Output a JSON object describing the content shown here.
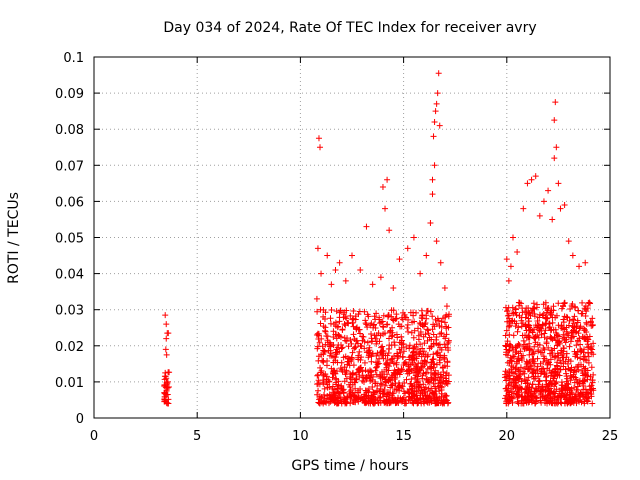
{
  "chart_data": {
    "type": "scatter",
    "title": "Day 034 of 2024, Rate Of TEC Index for receiver avry",
    "xlabel": "GPS time / hours",
    "ylabel": "ROTI / TECUs",
    "xlim": [
      0,
      25
    ],
    "ylim": [
      0,
      0.1
    ],
    "xticks": [
      0,
      5,
      10,
      15,
      20,
      25
    ],
    "xtick_labels": [
      "0",
      "5",
      "10",
      "15",
      "20",
      "25"
    ],
    "yticks": [
      0,
      0.01,
      0.02,
      0.03,
      0.04,
      0.05,
      0.06,
      0.07,
      0.08,
      0.09,
      0.1
    ],
    "ytick_labels": [
      "0",
      "0.01",
      "0.02",
      "0.03",
      "0.04",
      "0.05",
      "0.06",
      "0.07",
      "0.08",
      "0.09",
      "0.1"
    ],
    "grid": true,
    "marker": "+",
    "color": "#ff0000",
    "series": [
      {
        "name": "ROTI",
        "points": [
          [
            3.45,
            0.0285
          ],
          [
            3.5,
            0.026
          ],
          [
            3.55,
            0.0235
          ],
          [
            3.5,
            0.022
          ],
          [
            3.48,
            0.019
          ],
          [
            3.52,
            0.0175
          ],
          [
            3.45,
            0.0125
          ],
          [
            3.5,
            0.011
          ],
          [
            3.55,
            0.0095
          ],
          [
            3.48,
            0.0085
          ],
          [
            3.52,
            0.0075
          ],
          [
            3.5,
            0.0065
          ],
          [
            3.55,
            0.004
          ],
          [
            3.6,
            0.0235
          ],
          [
            3.58,
            0.01
          ],
          [
            10.9,
            0.0775
          ],
          [
            10.95,
            0.075
          ],
          [
            10.85,
            0.047
          ],
          [
            11.0,
            0.04
          ],
          [
            10.8,
            0.033
          ],
          [
            11.1,
            0.028
          ],
          [
            11.3,
            0.045
          ],
          [
            11.5,
            0.037
          ],
          [
            11.7,
            0.041
          ],
          [
            11.9,
            0.043
          ],
          [
            12.2,
            0.038
          ],
          [
            12.5,
            0.045
          ],
          [
            12.9,
            0.041
          ],
          [
            13.2,
            0.053
          ],
          [
            13.5,
            0.037
          ],
          [
            13.9,
            0.039
          ],
          [
            14.0,
            0.064
          ],
          [
            14.2,
            0.066
          ],
          [
            14.1,
            0.058
          ],
          [
            14.3,
            0.052
          ],
          [
            14.5,
            0.036
          ],
          [
            14.8,
            0.044
          ],
          [
            15.2,
            0.047
          ],
          [
            15.5,
            0.05
          ],
          [
            15.8,
            0.04
          ],
          [
            16.1,
            0.045
          ],
          [
            16.3,
            0.054
          ],
          [
            16.4,
            0.066
          ],
          [
            16.45,
            0.078
          ],
          [
            16.5,
            0.082
          ],
          [
            16.55,
            0.085
          ],
          [
            16.6,
            0.087
          ],
          [
            16.65,
            0.09
          ],
          [
            16.7,
            0.0955
          ],
          [
            16.75,
            0.081
          ],
          [
            16.5,
            0.07
          ],
          [
            16.4,
            0.062
          ],
          [
            16.6,
            0.049
          ],
          [
            16.8,
            0.043
          ],
          [
            17.0,
            0.036
          ],
          [
            17.1,
            0.031
          ],
          [
            20.0,
            0.044
          ],
          [
            20.1,
            0.038
          ],
          [
            20.2,
            0.042
          ],
          [
            20.3,
            0.05
          ],
          [
            20.5,
            0.046
          ],
          [
            20.8,
            0.058
          ],
          [
            21.0,
            0.065
          ],
          [
            21.2,
            0.066
          ],
          [
            21.4,
            0.067
          ],
          [
            21.6,
            0.056
          ],
          [
            21.8,
            0.06
          ],
          [
            22.0,
            0.063
          ],
          [
            22.2,
            0.055
          ],
          [
            22.3,
            0.0825
          ],
          [
            22.35,
            0.0875
          ],
          [
            22.4,
            0.075
          ],
          [
            22.3,
            0.072
          ],
          [
            22.5,
            0.065
          ],
          [
            22.6,
            0.058
          ],
          [
            22.8,
            0.059
          ],
          [
            23.0,
            0.049
          ],
          [
            23.2,
            0.045
          ],
          [
            23.5,
            0.042
          ],
          [
            23.8,
            0.043
          ],
          [
            24.0,
            0.032
          ]
        ]
      }
    ],
    "clusters": [
      {
        "x_range": [
          3.4,
          3.65
        ],
        "y_range": [
          0.004,
          0.014
        ],
        "density": 28
      },
      {
        "x_range": [
          10.8,
          17.2
        ],
        "y_range": [
          0.004,
          0.03
        ],
        "density": 1100
      },
      {
        "x_range": [
          19.9,
          24.2
        ],
        "y_range": [
          0.004,
          0.032
        ],
        "density": 900
      }
    ]
  }
}
